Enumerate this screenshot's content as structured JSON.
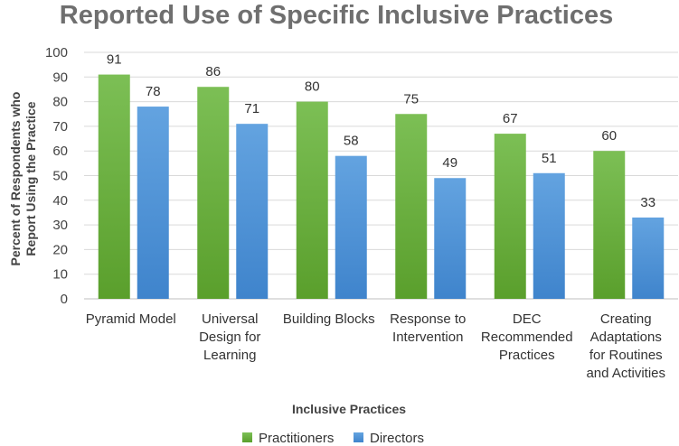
{
  "chart_data": {
    "type": "bar",
    "title": "Reported Use of Specific Inclusive Practices",
    "xlabel": "Inclusive Practices",
    "ylabel": [
      "Percent of Respondents who",
      "Report Using the Practice"
    ],
    "ylim": [
      0,
      100
    ],
    "yticks": [
      0,
      10,
      20,
      30,
      40,
      50,
      60,
      70,
      80,
      90,
      100
    ],
    "categories": [
      [
        "Pyramid Model"
      ],
      [
        "Universal",
        "Design for",
        "Learning"
      ],
      [
        "Building Blocks"
      ],
      [
        "Response to",
        "Intervention"
      ],
      [
        "DEC",
        "Recommended",
        "Practices"
      ],
      [
        "Creating",
        "Adaptations",
        "for Routines",
        "and Activities"
      ]
    ],
    "series": [
      {
        "name": "Practitioners",
        "color": "#6aab3c",
        "values": [
          91,
          86,
          80,
          75,
          67,
          60
        ]
      },
      {
        "name": "Directors",
        "color": "#4a8fd4",
        "values": [
          78,
          71,
          58,
          49,
          51,
          33
        ]
      }
    ],
    "grid": true,
    "legend": "bottom-center"
  }
}
